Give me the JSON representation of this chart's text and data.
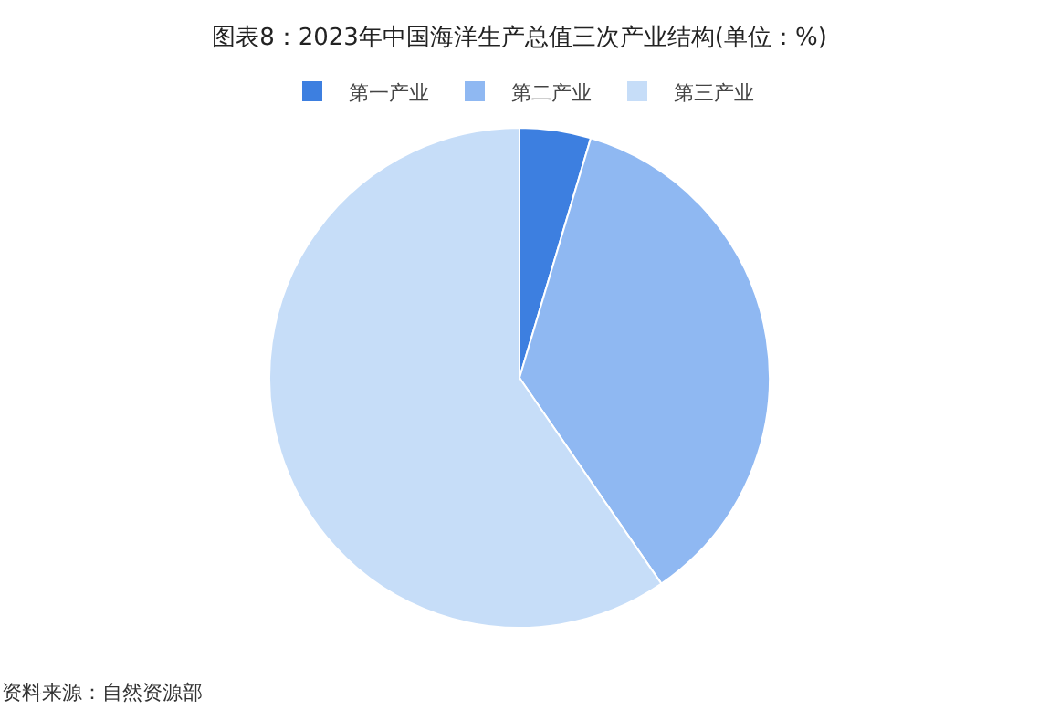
{
  "chart_data": {
    "type": "pie",
    "title": "图表8：2023年中国海洋生产总值三次产业结构(单位：%)",
    "categories": [
      "第一产业",
      "第二产业",
      "第三产业"
    ],
    "values": [
      4.6,
      35.8,
      59.6
    ],
    "colors": [
      "#3d7fe0",
      "#8fb8f2",
      "#c6ddf8"
    ],
    "legend": "top",
    "annotations": [
      "资料来源：自然资源部"
    ]
  }
}
